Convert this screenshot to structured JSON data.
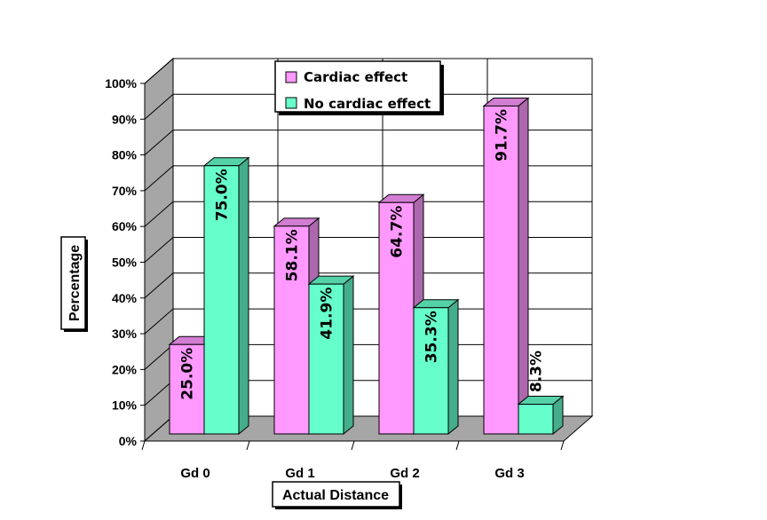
{
  "chart_data": {
    "type": "bar",
    "style": "3d-clustered",
    "categories": [
      "Gd 0",
      "Gd 1",
      "Gd 2",
      "Gd 3"
    ],
    "series": [
      {
        "name": "Cardiac effect",
        "values": [
          25.0,
          58.1,
          64.7,
          91.7
        ],
        "color": "#FF99FF",
        "labels": [
          "25.0%",
          "58.1%",
          "64.7%",
          "91.7%"
        ]
      },
      {
        "name": "No cardiac effect",
        "values": [
          75.0,
          41.9,
          35.3,
          8.3
        ],
        "color": "#66FFCC",
        "labels": [
          "75.0%",
          "41.9%",
          "35.3%",
          "8.3%"
        ]
      }
    ],
    "xlabel": "Actual Distance",
    "ylabel": "Percentage",
    "ylim": [
      0,
      100
    ],
    "yticks": [
      "0%",
      "10%",
      "20%",
      "30%",
      "40%",
      "50%",
      "60%",
      "70%",
      "80%",
      "90%",
      "100%"
    ],
    "grid": true,
    "legend_position": "top-center"
  }
}
